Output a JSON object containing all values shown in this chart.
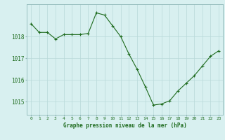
{
  "x": [
    0,
    1,
    2,
    3,
    4,
    5,
    6,
    7,
    8,
    9,
    10,
    11,
    12,
    13,
    14,
    15,
    16,
    17,
    18,
    19,
    20,
    21,
    22,
    23
  ],
  "y": [
    1018.6,
    1018.2,
    1018.2,
    1017.9,
    1018.1,
    1018.1,
    1018.1,
    1018.15,
    1019.1,
    1019.0,
    1018.5,
    1018.0,
    1017.2,
    1016.5,
    1015.7,
    1014.85,
    1014.9,
    1015.05,
    1015.5,
    1015.85,
    1016.2,
    1016.65,
    1017.1,
    1017.35
  ],
  "line_color": "#1e6b1e",
  "marker": "+",
  "marker_size": 3,
  "marker_lw": 0.8,
  "line_width": 0.8,
  "bg_color": "#d8f0f0",
  "grid_color": "#b8d8d8",
  "tick_label_color": "#1e6b1e",
  "xlabel": "Graphe pression niveau de la mer (hPa)",
  "yticks": [
    1015,
    1016,
    1017,
    1018
  ],
  "ylim": [
    1014.4,
    1019.5
  ],
  "xlim": [
    -0.5,
    23.5
  ],
  "xtick_fontsize": 4.5,
  "ytick_fontsize": 5.5,
  "xlabel_fontsize": 5.5
}
